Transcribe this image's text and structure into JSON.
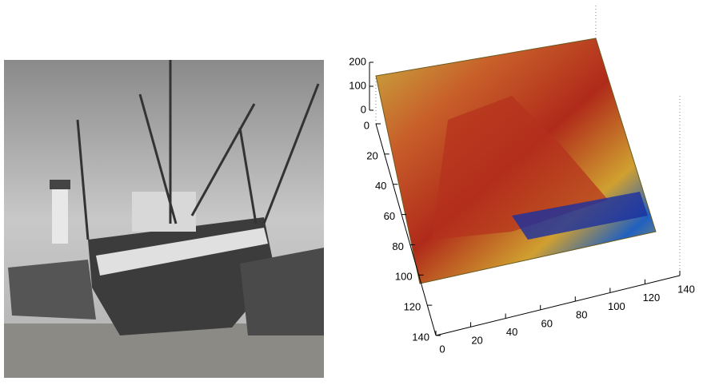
{
  "chart_data": [
    {
      "type": "image"
    },
    {
      "type": "surface",
      "xlim": [
        0,
        140
      ],
      "xticks": [
        0,
        20,
        40,
        60,
        80,
        100,
        120,
        140
      ],
      "ylim": [
        0,
        140
      ],
      "yticks": [
        0,
        20,
        40,
        60,
        80,
        100,
        120,
        140
      ],
      "zlim": [
        0,
        200
      ],
      "zticks": [
        0,
        100,
        200
      ]
    }
  ]
}
